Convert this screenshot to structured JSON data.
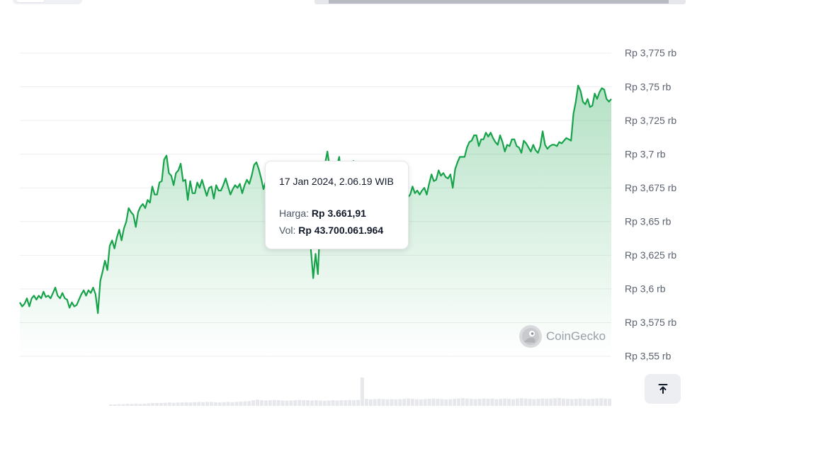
{
  "tooltip": {
    "date": "17 Jan 2024, 2.06.19 WIB",
    "price_label": "Harga:",
    "price_value": "Rp 3.661,91",
    "vol_label": "Vol:",
    "vol_value": "Rp 43.700.061.964"
  },
  "watermark": {
    "text": "CoinGecko"
  },
  "icons": {
    "watermark": "coingecko-logo",
    "scroll_top": "arrow-up-to-line-icon"
  },
  "colors": {
    "line": "#16a34a",
    "marker": "#86d19c",
    "volume": "#e6e8ec"
  },
  "chart_data": {
    "type": "area",
    "ylim": [
      3550,
      3775
    ],
    "y_ticks": [
      3775,
      3750,
      3725,
      3700,
      3675,
      3650,
      3625,
      3600,
      3575,
      3550
    ],
    "y_tick_labels": [
      "Rp 3,775 rb",
      "Rp 3,75 rb",
      "Rp 3,725 rb",
      "Rp 3,7 rb",
      "Rp 3,675 rb",
      "Rp 3,65 rb",
      "Rp 3,625 rb",
      "Rp 3,6 rb",
      "Rp 3,575 rb",
      "Rp 3,55 rb"
    ],
    "grid": true,
    "highlight": {
      "price": 3661.91,
      "volume": 43700061964
    },
    "series": [
      {
        "values": [
          3590,
          3587,
          3589,
          3593,
          3587,
          3593,
          3595,
          3592,
          3595,
          3593,
          3598,
          3594,
          3595,
          3593,
          3597,
          3601,
          3595,
          3593,
          3597,
          3593,
          3592,
          3586,
          3590,
          3587,
          3588,
          3592,
          3596,
          3599,
          3595,
          3599,
          3597,
          3601,
          3596,
          3582,
          3606,
          3613,
          3621,
          3614,
          3632,
          3636,
          3630,
          3638,
          3644,
          3636,
          3645,
          3650,
          3660,
          3657,
          3655,
          3646,
          3657,
          3661,
          3663,
          3660,
          3666,
          3664,
          3676,
          3670,
          3670,
          3679,
          3680,
          3696,
          3699,
          3686,
          3684,
          3677,
          3686,
          3688,
          3693,
          3680,
          3681,
          3666,
          3680,
          3671,
          3671,
          3679,
          3675,
          3681,
          3675,
          3669,
          3675,
          3676,
          3667,
          3677,
          3673,
          3673,
          3677,
          3682,
          3676,
          3670,
          3674,
          3677,
          3675,
          3678,
          3671,
          3677,
          3681,
          3678,
          3684,
          3692,
          3694,
          3689,
          3682,
          3674,
          3680,
          3683,
          3680,
          3691,
          3687,
          3692,
          3689,
          3685,
          3681,
          3688,
          3674,
          3682,
          3678,
          3681,
          3676,
          3675,
          3670,
          3666,
          3660,
          3630,
          3608,
          3626,
          3611,
          3652,
          3672,
          3693,
          3702,
          3690,
          3678,
          3693,
          3691,
          3698,
          3680,
          3681,
          3671,
          3665,
          3680,
          3695,
          3688,
          3670,
          3668,
          3668,
          3667,
          3666,
          3663,
          3663,
          3668,
          3671,
          3658,
          3661,
          3660,
          3655,
          3658,
          3663,
          3664,
          3659,
          3668,
          3667,
          3666,
          3663,
          3668,
          3670,
          3676,
          3671,
          3673,
          3670,
          3673,
          3675,
          3670,
          3678,
          3685,
          3680,
          3681,
          3688,
          3684,
          3686,
          3683,
          3682,
          3685,
          3675,
          3689,
          3694,
          3698,
          3698,
          3698,
          3705,
          3709,
          3710,
          3714,
          3714,
          3706,
          3711,
          3711,
          3716,
          3713,
          3716,
          3712,
          3709,
          3707,
          3714,
          3709,
          3702,
          3707,
          3706,
          3711,
          3711,
          3706,
          3705,
          3701,
          3710,
          3708,
          3705,
          3702,
          3707,
          3703,
          3701,
          3706,
          3717,
          3707,
          3704,
          3706,
          3707,
          3707,
          3706,
          3709,
          3708,
          3710,
          3712,
          3711,
          3710,
          3730,
          3739,
          3751,
          3747,
          3739,
          3737,
          3741,
          3735,
          3736,
          3745,
          3741,
          3746,
          3749,
          3748,
          3741,
          3739,
          3741
        ]
      }
    ],
    "volume": [
      0.05,
      0.05,
      0.06,
      0.06,
      0.07,
      0.07,
      0.08,
      0.07,
      0.08,
      0.09,
      0.1,
      0.1,
      0.1,
      0.11,
      0.12,
      0.11,
      0.12,
      0.12,
      0.13,
      0.12,
      0.13,
      0.14,
      0.13,
      0.14,
      0.14,
      0.13,
      0.12,
      0.13,
      0.14,
      0.13,
      0.14,
      0.15,
      0.16,
      0.17,
      0.2,
      0.22,
      0.2,
      0.19,
      0.2,
      0.21,
      0.2,
      0.19,
      0.18,
      0.19,
      0.2,
      0.21,
      0.2,
      0.2,
      0.19,
      0.2,
      0.19,
      0.18,
      0.19,
      0.2,
      0.19,
      0.2,
      0.2,
      0.21,
      0.2,
      0.21,
      1.0,
      0.25,
      0.23,
      0.24,
      0.25,
      0.24,
      0.23,
      0.24,
      0.23,
      0.24,
      0.25,
      0.26,
      0.25,
      0.24,
      0.23,
      0.24,
      0.25,
      0.26,
      0.25,
      0.24,
      0.23,
      0.24,
      0.25,
      0.26,
      0.27,
      0.26,
      0.25,
      0.24,
      0.25,
      0.26,
      0.25,
      0.26,
      0.24,
      0.25,
      0.26,
      0.25,
      0.24,
      0.26,
      0.27,
      0.26,
      0.25,
      0.24,
      0.25,
      0.26,
      0.25,
      0.26,
      0.27,
      0.28,
      0.26,
      0.25,
      0.24,
      0.25,
      0.26,
      0.25,
      0.24,
      0.25,
      0.26,
      0.27,
      0.26,
      0.25
    ]
  }
}
